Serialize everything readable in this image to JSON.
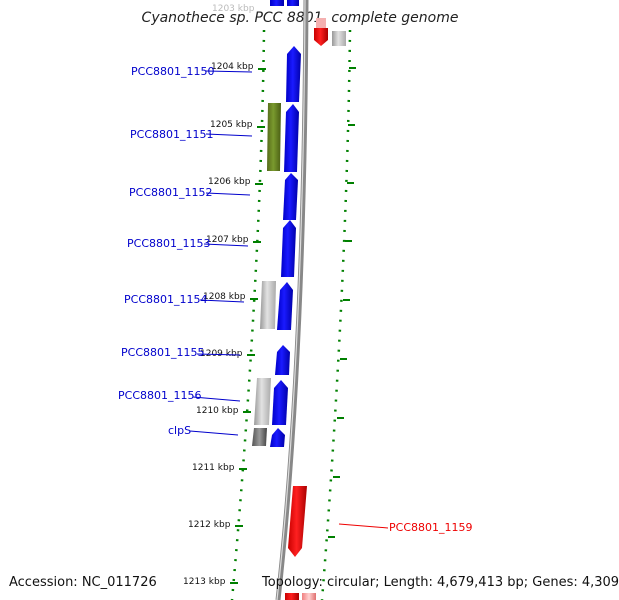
{
  "title": "Cyanothece sp. PCC 8801, complete genome",
  "footer": {
    "accession": "Accession: NC_011726",
    "topology": "Topology: circular; Length: 4,679,413 bp; Genes: 4,309"
  },
  "scale": {
    "top_label": "1203 kbp",
    "ticks": [
      "1204 kbp",
      "1205 kbp",
      "1206 kbp",
      "1207 kbp",
      "1208 kbp",
      "1209 kbp",
      "1210 kbp",
      "1211 kbp",
      "1212 kbp",
      "1213 kbp"
    ]
  },
  "gene_labels": [
    "PCC8801_1150",
    "PCC8801_1151",
    "PCC8801_1152",
    "PCC8801_1153",
    "PCC8801_1154",
    "PCC8801_1155",
    "PCC8801_1156",
    "clpS",
    "PCC8801_1159"
  ],
  "colors": {
    "forward_gene": "#0000ee",
    "reverse_gene": "#ee0000",
    "olive_feature": "#6b8e23",
    "grey_feature": "#b0b0b0",
    "scale_tick": "#008000",
    "backbone": "#888888"
  }
}
